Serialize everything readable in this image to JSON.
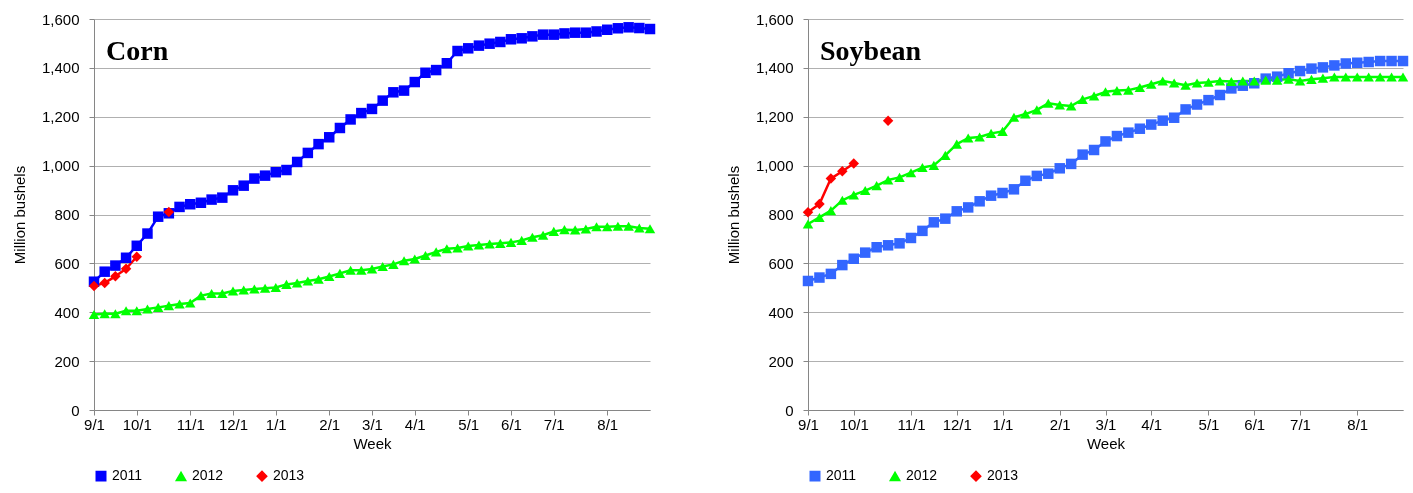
{
  "chart_data": [
    {
      "type": "line",
      "title": "Corn",
      "xlabel": "Week",
      "ylabel": "Million bushels",
      "grid": "y",
      "legend": "bottom",
      "categories": [
        "9/1",
        null,
        null,
        null,
        "10/1",
        null,
        null,
        null,
        null,
        "11/1",
        null,
        null,
        null,
        "12/1",
        null,
        null,
        null,
        "1/1",
        null,
        null,
        null,
        null,
        "2/1",
        null,
        null,
        null,
        "3/1",
        null,
        null,
        null,
        "4/1",
        null,
        null,
        null,
        null,
        "5/1",
        null,
        null,
        null,
        "6/1",
        null,
        null,
        null,
        "7/1",
        null,
        null,
        null,
        null,
        "8/1",
        null,
        null,
        null,
        null
      ],
      "ylim": [
        0,
        1600
      ],
      "yticks": [
        0,
        200,
        400,
        600,
        800,
        {
          "value": 1000,
          "label": "1,000"
        },
        {
          "value": 1200,
          "label": "1,200"
        },
        {
          "value": 1400,
          "label": "1,400"
        },
        {
          "value": 1600,
          "label": "1,600"
        }
      ],
      "series": [
        {
          "name": "2011",
          "color": "#0000ff",
          "marker": "square",
          "values": [
            525,
            566,
            591,
            623,
            672,
            722,
            791,
            805,
            831,
            842,
            848,
            861,
            869,
            899,
            918,
            947,
            959,
            973,
            982,
            1015,
            1052,
            1088,
            1116,
            1154,
            1189,
            1215,
            1232,
            1266,
            1300,
            1307,
            1342,
            1380,
            1391,
            1419,
            1469,
            1480,
            1491,
            1499,
            1506,
            1517,
            1521,
            1529,
            1536,
            1536,
            1541,
            1544,
            1544,
            1549,
            1556,
            1562,
            1566,
            1563,
            1559
          ]
        },
        {
          "name": "2012",
          "color": "#00ff00",
          "marker": "triangle",
          "values": [
            391,
            394,
            394,
            406,
            406,
            413,
            420,
            427,
            434,
            438,
            468,
            477,
            477,
            487,
            491,
            495,
            498,
            501,
            514,
            520,
            528,
            535,
            546,
            559,
            572,
            572,
            577,
            587,
            596,
            611,
            618,
            632,
            647,
            660,
            663,
            671,
            675,
            679,
            682,
            686,
            694,
            707,
            715,
            731,
            738,
            737,
            741,
            750,
            750,
            752,
            752,
            745,
            742
          ]
        },
        {
          "name": "2013",
          "color": "#ff0000",
          "marker": "diamond",
          "values": [
            507,
            520,
            547,
            578,
            627,
            null,
            null,
            810,
            null,
            null,
            null,
            null,
            null,
            null,
            null,
            null,
            null,
            null,
            null,
            null,
            null,
            null,
            null,
            null,
            null,
            null,
            null,
            null,
            null,
            null,
            null,
            null,
            null,
            null,
            null,
            null,
            null,
            null,
            null,
            null,
            null,
            null,
            null,
            null,
            null,
            null,
            null,
            null,
            null,
            null,
            null,
            null,
            null
          ]
        }
      ]
    },
    {
      "type": "line",
      "title": "Soybean",
      "xlabel": "Week",
      "ylabel": "Million bushels",
      "grid": "y",
      "legend": "bottom",
      "categories": [
        "9/1",
        null,
        null,
        null,
        "10/1",
        null,
        null,
        null,
        null,
        "11/1",
        null,
        null,
        null,
        "12/1",
        null,
        null,
        null,
        "1/1",
        null,
        null,
        null,
        null,
        "2/1",
        null,
        null,
        null,
        "3/1",
        null,
        null,
        null,
        "4/1",
        null,
        null,
        null,
        null,
        "5/1",
        null,
        null,
        null,
        "6/1",
        null,
        null,
        null,
        "7/1",
        null,
        null,
        null,
        null,
        "8/1",
        null,
        null,
        null,
        null
      ],
      "ylim": [
        0,
        1600
      ],
      "yticks": [
        0,
        200,
        400,
        600,
        800,
        {
          "value": 1000,
          "label": "1,000"
        },
        {
          "value": 1200,
          "label": "1,200"
        },
        {
          "value": 1400,
          "label": "1,400"
        },
        {
          "value": 1600,
          "label": "1,600"
        }
      ],
      "series": [
        {
          "name": "2011",
          "color": "#3366ff",
          "marker": "square",
          "values": [
            528,
            542,
            557,
            593,
            619,
            644,
            666,
            674,
            682,
            704,
            733,
            768,
            783,
            813,
            829,
            854,
            877,
            888,
            903,
            938,
            958,
            967,
            989,
            1007,
            1045,
            1064,
            1099,
            1121,
            1135,
            1151,
            1168,
            1184,
            1196,
            1230,
            1250,
            1268,
            1289,
            1316,
            1327,
            1337,
            1356,
            1364,
            1378,
            1387,
            1397,
            1402,
            1410,
            1418,
            1421,
            1424,
            1428,
            1428,
            1428
          ]
        },
        {
          "name": "2012",
          "color": "#00ff00",
          "marker": "triangle",
          "values": [
            761,
            788,
            816,
            858,
            880,
            898,
            918,
            941,
            952,
            971,
            992,
            1001,
            1042,
            1088,
            1113,
            1117,
            1132,
            1140,
            1198,
            1211,
            1228,
            1255,
            1248,
            1244,
            1271,
            1285,
            1302,
            1307,
            1309,
            1320,
            1333,
            1346,
            1338,
            1329,
            1338,
            1341,
            1346,
            1344,
            1346,
            1346,
            1350,
            1350,
            1354,
            1346,
            1353,
            1358,
            1363,
            1363,
            1363,
            1363,
            1363,
            1363,
            1363
          ]
        },
        {
          "name": "2013",
          "color": "#ff0000",
          "marker": "diamond",
          "values": [
            809,
            843,
            947,
            977,
            1009,
            null,
            null,
            1184,
            null,
            null,
            null,
            null,
            null,
            null,
            null,
            null,
            null,
            null,
            null,
            null,
            null,
            null,
            null,
            null,
            null,
            null,
            null,
            null,
            null,
            null,
            null,
            null,
            null,
            null,
            null,
            null,
            null,
            null,
            null,
            null,
            null,
            null,
            null,
            null,
            null,
            null,
            null,
            null,
            null,
            null,
            null,
            null,
            null
          ]
        }
      ]
    }
  ]
}
